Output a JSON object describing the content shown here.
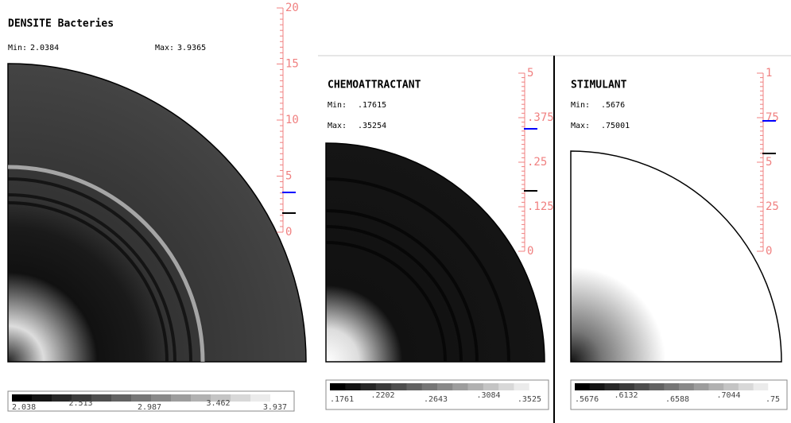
{
  "panels": [
    {
      "title": "DENSITE Bacteries",
      "min_label": "Min:",
      "min": "2.0384",
      "max_label": "Max:",
      "max": "3.9365",
      "scale_ticks": [
        "20",
        "15",
        "10",
        "5",
        "0"
      ],
      "colorbar_labels": [
        "2.038",
        "2.513",
        "2.987",
        "3.462",
        "3.937"
      ]
    },
    {
      "title": "CHEMOATTRACTANT",
      "min_label": "Min:",
      "min": ".17615",
      "max_label": "Max:",
      "max": ".35254",
      "scale_ticks": [
        "5",
        ".375",
        ".25",
        ".125",
        "0"
      ],
      "colorbar_labels": [
        ".1761",
        ".2202",
        ".2643",
        ".3084",
        ".3525"
      ]
    },
    {
      "title": "STIMULANT",
      "min_label": "Min:",
      "min": ".5676",
      "max_label": "Max:",
      "max": ".75001",
      "scale_ticks": [
        "1",
        "75",
        "5",
        "25",
        "0"
      ],
      "colorbar_labels": [
        ".5676",
        ".6132",
        ".6588",
        ".7044",
        ".75"
      ]
    }
  ]
}
